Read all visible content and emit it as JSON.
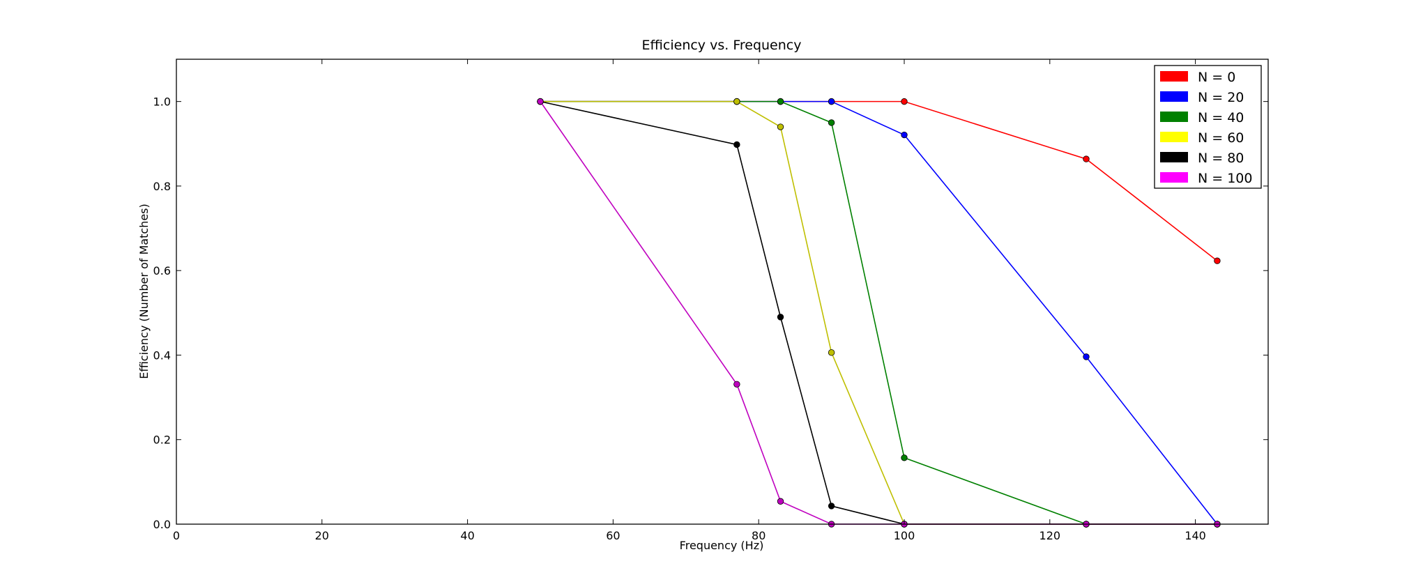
{
  "chart_data": {
    "type": "line",
    "title": "Efficiency vs. Frequency",
    "xlabel": "Frequency (Hz)",
    "ylabel": "Efficiency (Number of Matches)",
    "xlim": [
      0,
      150
    ],
    "ylim": [
      0,
      1.1
    ],
    "xticks": [
      0,
      20,
      40,
      60,
      80,
      100,
      120,
      140
    ],
    "yticks": [
      "0.0",
      "0.2",
      "0.4",
      "0.6",
      "0.8",
      "1.0"
    ],
    "grid": false,
    "legend_position": "top-right",
    "series": [
      {
        "name": "N = 0",
        "color": "#ff0000",
        "x": [
          50,
          77,
          83,
          90,
          100,
          125,
          143
        ],
        "y": [
          1.0,
          1.0,
          1.0,
          1.0,
          1.0,
          0.864,
          0.623
        ]
      },
      {
        "name": "N = 20",
        "color": "#0000ff",
        "x": [
          50,
          77,
          83,
          90,
          100,
          125,
          143
        ],
        "y": [
          1.0,
          1.0,
          1.0,
          1.0,
          0.921,
          0.396,
          0.0
        ]
      },
      {
        "name": "N = 40",
        "color": "#008000",
        "x": [
          50,
          77,
          83,
          90,
          100,
          125,
          143
        ],
        "y": [
          1.0,
          1.0,
          1.0,
          0.95,
          0.157,
          0.0,
          0.0
        ]
      },
      {
        "name": "N = 60",
        "color": "#bfbf00",
        "legend_color": "#ffff00",
        "x": [
          50,
          77,
          83,
          90,
          100,
          125,
          143
        ],
        "y": [
          1.0,
          1.0,
          0.94,
          0.406,
          0.0,
          0.0,
          0.0
        ]
      },
      {
        "name": "N = 80",
        "color": "#000000",
        "x": [
          50,
          77,
          83,
          90,
          100,
          125,
          143
        ],
        "y": [
          1.0,
          0.898,
          0.49,
          0.043,
          0.0,
          0.0,
          0.0
        ]
      },
      {
        "name": "N = 100",
        "color": "#bf00bf",
        "legend_color": "#ff00ff",
        "x": [
          50,
          77,
          83,
          90,
          100,
          125,
          143
        ],
        "y": [
          1.0,
          0.331,
          0.054,
          0.0,
          0.0,
          0.0,
          0.0
        ]
      }
    ]
  }
}
